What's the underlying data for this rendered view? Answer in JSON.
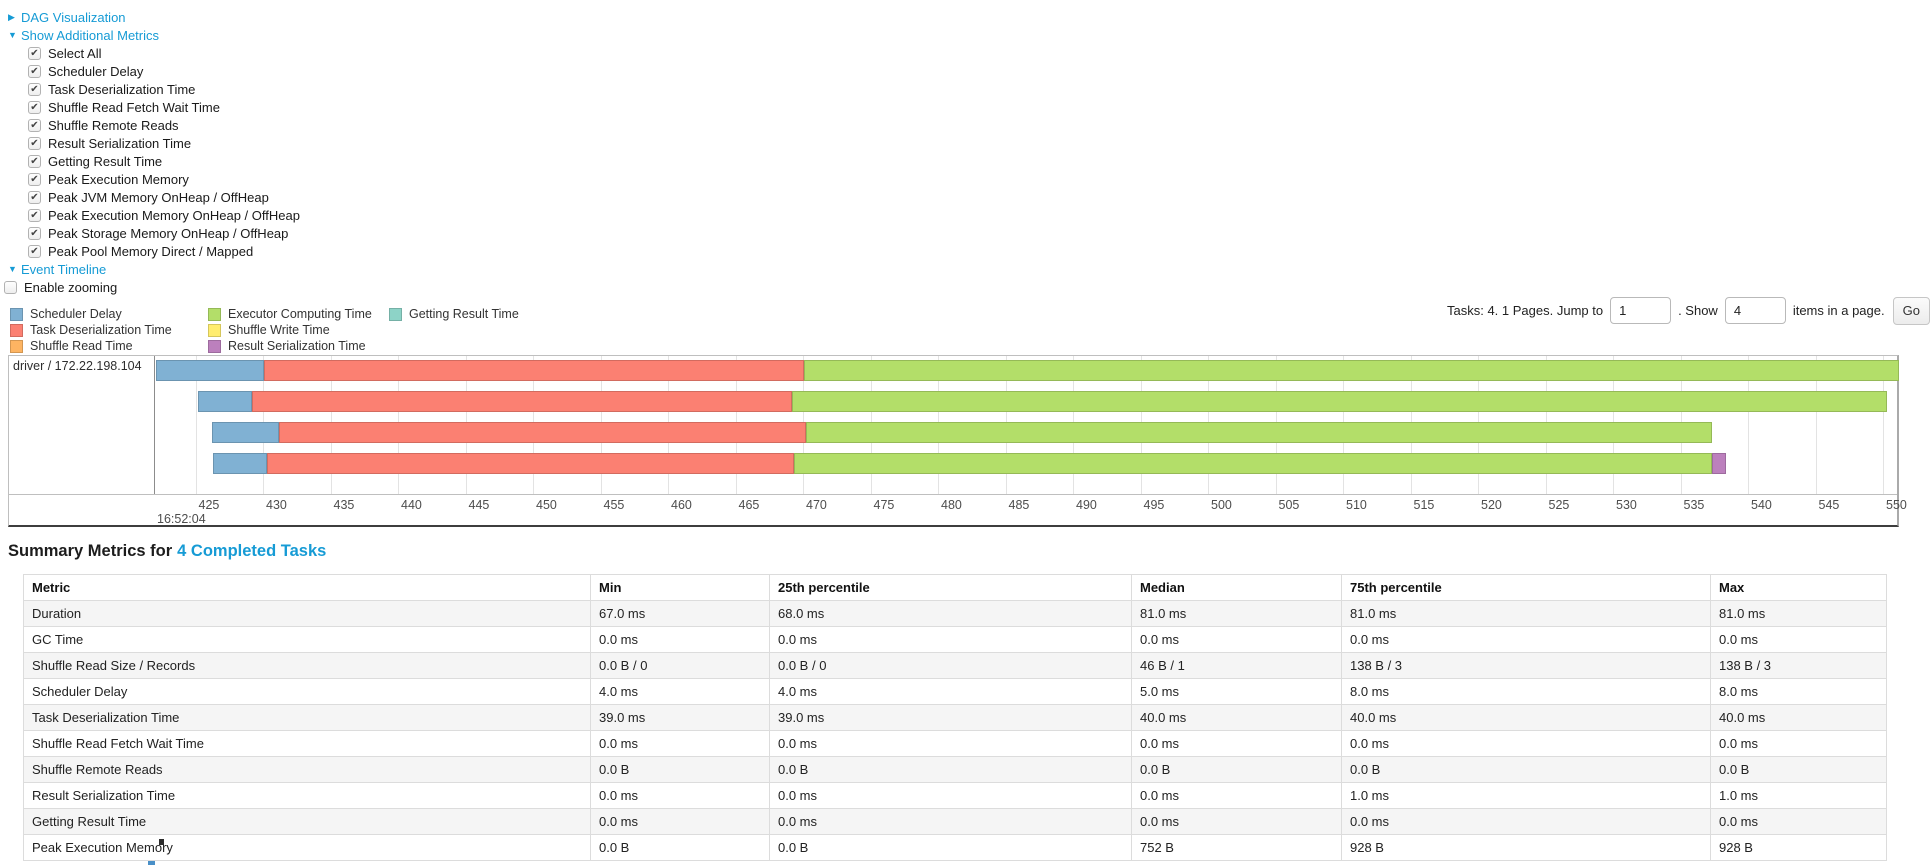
{
  "colors": {
    "link": "#169bd5",
    "table_stripe": "#f5f5f5"
  },
  "controls": {
    "dag_visualization": "DAG Visualization",
    "show_additional_metrics": "Show Additional Metrics",
    "metric_checkboxes": [
      {
        "label": "Select All",
        "checked": true
      },
      {
        "label": "Scheduler Delay",
        "checked": true
      },
      {
        "label": "Task Deserialization Time",
        "checked": true
      },
      {
        "label": "Shuffle Read Fetch Wait Time",
        "checked": true
      },
      {
        "label": "Shuffle Remote Reads",
        "checked": true
      },
      {
        "label": "Result Serialization Time",
        "checked": true
      },
      {
        "label": "Getting Result Time",
        "checked": true
      },
      {
        "label": "Peak Execution Memory",
        "checked": true
      },
      {
        "label": "Peak JVM Memory OnHeap / OffHeap",
        "checked": true
      },
      {
        "label": "Peak Execution Memory OnHeap / OffHeap",
        "checked": true
      },
      {
        "label": "Peak Storage Memory OnHeap / OffHeap",
        "checked": true
      },
      {
        "label": "Peak Pool Memory Direct / Mapped",
        "checked": true
      }
    ],
    "event_timeline": "Event Timeline",
    "enable_zooming": {
      "label": "Enable zooming",
      "checked": false
    }
  },
  "legend": {
    "items": [
      {
        "key": "scheduler-delay",
        "label": "Scheduler Delay",
        "fill": "#80B1D3",
        "stroke": "#6B94B0"
      },
      {
        "key": "task-deserialization",
        "label": "Task Deserialization Time",
        "fill": "#FB8072",
        "stroke": "#D26B5F"
      },
      {
        "key": "shuffle-read",
        "label": "Shuffle Read Time",
        "fill": "#FDB462",
        "stroke": "#D39651"
      },
      {
        "key": "executor-computing",
        "label": "Executor Computing Time",
        "fill": "#B3DE69",
        "stroke": "#95B957"
      },
      {
        "key": "shuffle-write",
        "label": "Shuffle Write Time",
        "fill": "#FFED6F",
        "stroke": "#D5C65C"
      },
      {
        "key": "result-serialization",
        "label": "Result Serialization Time",
        "fill": "#BC80BD",
        "stroke": "#9D6B9E"
      },
      {
        "key": "getting-result",
        "label": "Getting Result Time",
        "fill": "#8DD3C7",
        "stroke": "#75B0A6"
      }
    ]
  },
  "pagination": {
    "tasks_info": "Tasks: 4. 1 Pages. Jump to",
    "jump_value": "1",
    "show_label": ". Show",
    "page_size_value": "4",
    "items_label": "items in a page.",
    "go_label": "Go"
  },
  "timeline": {
    "group_label": "driver / 172.22.198.104",
    "major_tick_label": "16:52:04",
    "window_start_ms": 422,
    "window_end_ms": 551.3,
    "tick_interval_ms": 5,
    "ticks": [
      425,
      430,
      435,
      440,
      445,
      450,
      455,
      460,
      465,
      470,
      475,
      480,
      485,
      490,
      495,
      500,
      505,
      510,
      515,
      520,
      525,
      530,
      535,
      540,
      545,
      550
    ],
    "tasks": [
      {
        "segments": [
          {
            "type": "scheduler-delay",
            "start": 422.05,
            "end": 430.1
          },
          {
            "type": "task-deserialization",
            "start": 430.1,
            "end": 470.1
          },
          {
            "type": "executor-computing",
            "start": 470.1,
            "end": 551.2
          }
        ]
      },
      {
        "segments": [
          {
            "type": "scheduler-delay",
            "start": 425.2,
            "end": 429.2
          },
          {
            "type": "task-deserialization",
            "start": 429.2,
            "end": 469.2
          },
          {
            "type": "executor-computing",
            "start": 469.2,
            "end": 550.3
          }
        ]
      },
      {
        "segments": [
          {
            "type": "scheduler-delay",
            "start": 426.2,
            "end": 431.2
          },
          {
            "type": "task-deserialization",
            "start": 431.2,
            "end": 470.2
          },
          {
            "type": "executor-computing",
            "start": 470.2,
            "end": 537.3
          }
        ]
      },
      {
        "segments": [
          {
            "type": "scheduler-delay",
            "start": 426.3,
            "end": 430.3
          },
          {
            "type": "task-deserialization",
            "start": 430.3,
            "end": 469.3
          },
          {
            "type": "executor-computing",
            "start": 469.3,
            "end": 537.3
          },
          {
            "type": "result-serialization",
            "start": 537.3,
            "end": 538.4
          }
        ]
      }
    ]
  },
  "summary": {
    "title_prefix": "Summary Metrics for",
    "title_link": "4 Completed Tasks",
    "columns": [
      "Metric",
      "Min",
      "25th percentile",
      "Median",
      "75th percentile",
      "Max"
    ],
    "rows": [
      {
        "metric": "Duration",
        "values": [
          "67.0 ms",
          "68.0 ms",
          "81.0 ms",
          "81.0 ms",
          "81.0 ms"
        ]
      },
      {
        "metric": "GC Time",
        "values": [
          "0.0 ms",
          "0.0 ms",
          "0.0 ms",
          "0.0 ms",
          "0.0 ms"
        ]
      },
      {
        "metric": "Shuffle Read Size / Records",
        "values": [
          "0.0 B / 0",
          "0.0 B / 0",
          "46 B / 1",
          "138 B / 3",
          "138 B / 3"
        ]
      },
      {
        "metric": "Scheduler Delay",
        "values": [
          "4.0 ms",
          "4.0 ms",
          "5.0 ms",
          "8.0 ms",
          "8.0 ms"
        ]
      },
      {
        "metric": "Task Deserialization Time",
        "values": [
          "39.0 ms",
          "39.0 ms",
          "40.0 ms",
          "40.0 ms",
          "40.0 ms"
        ]
      },
      {
        "metric": "Shuffle Read Fetch Wait Time",
        "values": [
          "0.0 ms",
          "0.0 ms",
          "0.0 ms",
          "0.0 ms",
          "0.0 ms"
        ]
      },
      {
        "metric": "Shuffle Remote Reads",
        "values": [
          "0.0 B",
          "0.0 B",
          "0.0 B",
          "0.0 B",
          "0.0 B"
        ]
      },
      {
        "metric": "Result Serialization Time",
        "values": [
          "0.0 ms",
          "0.0 ms",
          "0.0 ms",
          "1.0 ms",
          "1.0 ms"
        ]
      },
      {
        "metric": "Getting Result Time",
        "values": [
          "0.0 ms",
          "0.0 ms",
          "0.0 ms",
          "0.0 ms",
          "0.0 ms"
        ]
      },
      {
        "metric": "Peak Execution Memory",
        "values": [
          "0.0 B",
          "0.0 B",
          "752 B",
          "928 B",
          "928 B"
        ]
      }
    ]
  }
}
